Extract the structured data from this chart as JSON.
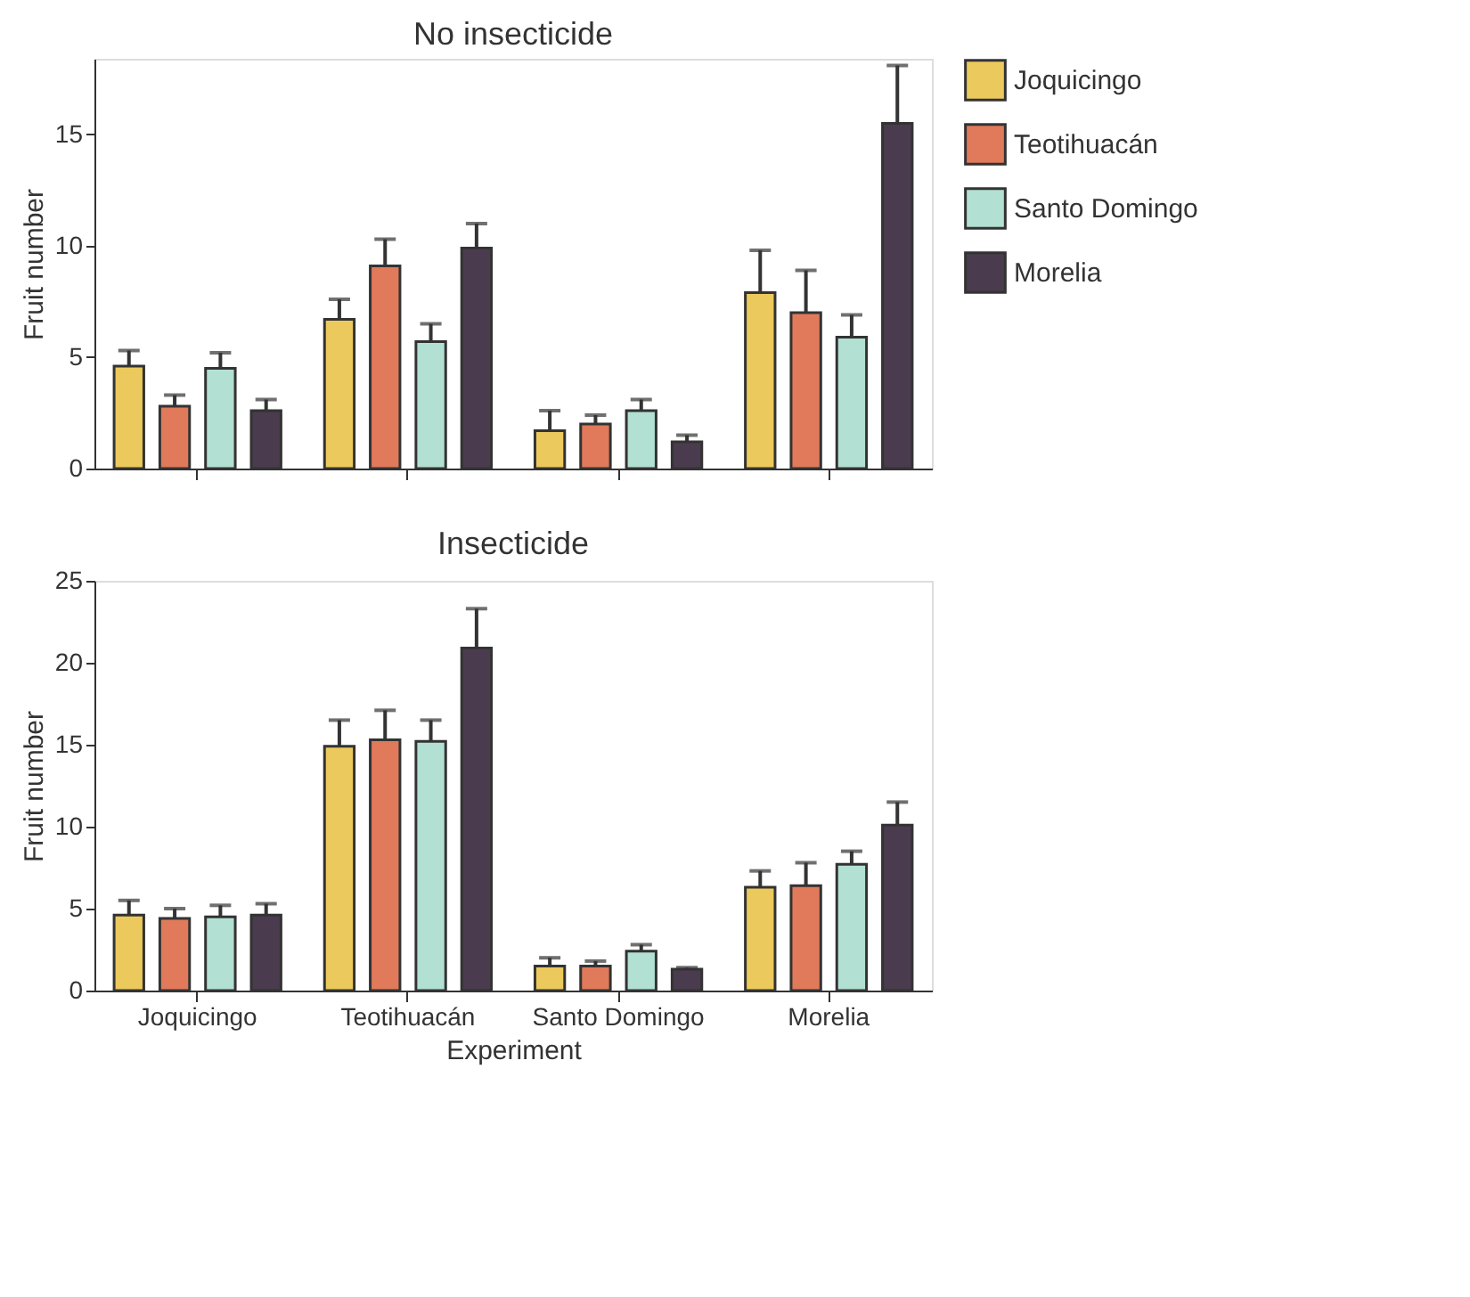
{
  "chart_data": [
    {
      "type": "bar",
      "title": "No insecticide",
      "ylabel": "Fruit number",
      "categories": [
        null,
        null,
        null,
        null
      ],
      "ylim": [
        0,
        18.4
      ],
      "yticks": [
        0,
        5,
        10,
        15
      ],
      "grid": false,
      "legend": "right",
      "tick_labels": "y",
      "series": [
        {
          "name": "Joquicingo",
          "color": "#ecc95c",
          "values": [
            4.6,
            6.7,
            1.7,
            7.9
          ],
          "errors": [
            [
              4.6,
              5.3
            ],
            [
              6.7,
              7.6
            ],
            [
              1.7,
              2.6
            ],
            [
              7.9,
              9.8
            ]
          ]
        },
        {
          "name": "Teotihuacán",
          "color": "#e07a5a",
          "values": [
            2.8,
            9.1,
            2.0,
            7.0
          ],
          "errors": [
            [
              2.8,
              3.3
            ],
            [
              9.1,
              10.3
            ],
            [
              2.0,
              2.4
            ],
            [
              7.0,
              8.9
            ]
          ]
        },
        {
          "name": "Santo Domingo",
          "color": "#b2e0d2",
          "values": [
            4.5,
            5.7,
            2.6,
            5.9
          ],
          "errors": [
            [
              4.5,
              5.2
            ],
            [
              5.7,
              6.5
            ],
            [
              2.6,
              3.1
            ],
            [
              5.9,
              6.9
            ]
          ]
        },
        {
          "name": "Morelia",
          "color": "#4a3c4e",
          "values": [
            2.6,
            9.9,
            1.2,
            15.5
          ],
          "errors": [
            [
              2.6,
              3.1
            ],
            [
              9.9,
              11.0
            ],
            [
              1.2,
              1.5
            ],
            [
              15.5,
              18.1
            ]
          ]
        }
      ]
    },
    {
      "type": "bar",
      "title": "Insecticide",
      "ylabel": "Fruit number",
      "xlabel": "Experiment",
      "categories": [
        "Joquicingo",
        "Teotihuacán",
        "Santo Domingo",
        "Morelia"
      ],
      "ylim": [
        0,
        25
      ],
      "yticks": [
        0,
        5,
        10,
        15,
        20,
        25
      ],
      "grid": false,
      "series": [
        {
          "color": "#ecc95c",
          "values": [
            4.6,
            14.9,
            1.5,
            6.3
          ],
          "errors": [
            [
              4.6,
              5.5
            ],
            [
              14.9,
              16.5
            ],
            [
              1.5,
              2.0
            ],
            [
              6.3,
              7.3
            ]
          ]
        },
        {
          "color": "#e07a5a",
          "values": [
            4.4,
            15.3,
            1.5,
            6.4
          ],
          "errors": [
            [
              4.4,
              5.0
            ],
            [
              15.3,
              17.1
            ],
            [
              1.5,
              1.8
            ],
            [
              6.4,
              7.8
            ]
          ]
        },
        {
          "color": "#b2e0d2",
          "values": [
            4.5,
            15.2,
            2.4,
            7.7
          ],
          "errors": [
            [
              4.5,
              5.2
            ],
            [
              15.2,
              16.5
            ],
            [
              2.4,
              2.8
            ],
            [
              7.7,
              8.5
            ]
          ]
        },
        {
          "color": "#4a3c4e",
          "values": [
            4.6,
            20.9,
            1.3,
            10.1
          ],
          "errors": [
            [
              4.6,
              5.3
            ],
            [
              20.9,
              23.3
            ],
            [
              1.3,
              1.4
            ],
            [
              10.1,
              11.5
            ]
          ]
        }
      ]
    }
  ]
}
